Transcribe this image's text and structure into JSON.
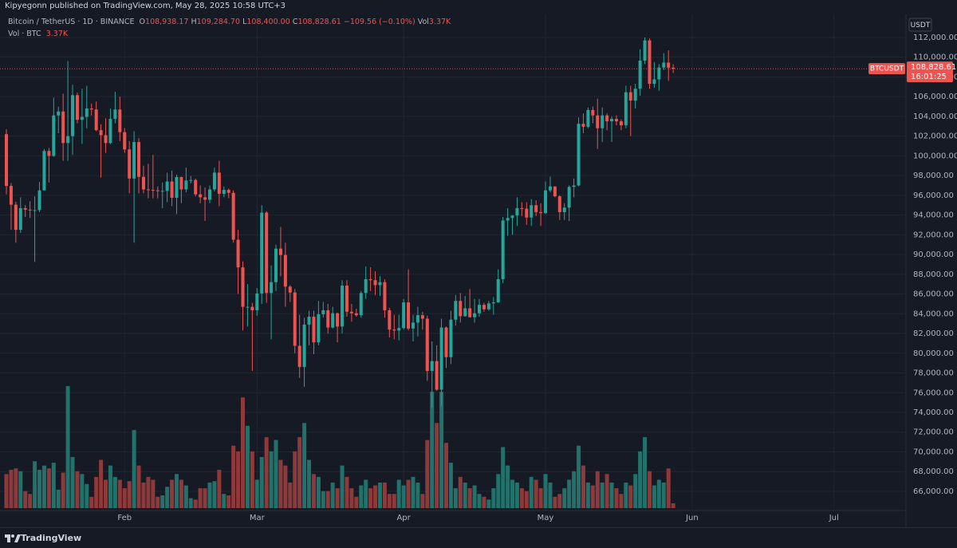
{
  "header": "Kipyegonn published on TradingView.com, May 28, 2025 10:58 UTC+3",
  "footer": "TradingView",
  "legend": {
    "symbol": "Bitcoin / TetherUS · 1D · BINANCE",
    "items": [
      {
        "key": "O",
        "value": "108,938.17"
      },
      {
        "key": "H",
        "value": "109,284.70"
      },
      {
        "key": "L",
        "value": "108,400.00"
      },
      {
        "key": "C",
        "value": "108,828.61"
      }
    ],
    "change": "−109.56 (−0.10%)",
    "volume_key": "Vol",
    "volume_value": "3.37K"
  },
  "volume_legend": {
    "name": "Vol · BTC",
    "value": "3.37K"
  },
  "chart_data": {
    "type": "candlestick",
    "currency": "USDT",
    "symbol_label": "BTCUSDT",
    "last_price_label": "108,828.61",
    "countdown": "16:01:25",
    "up_color": "#26a69a",
    "down_color": "#ef5350",
    "volume_up_color": "#22716b",
    "volume_down_color": "#8e3a3b",
    "grid": true,
    "xlim": [
      -1.35,
      190.05
    ],
    "xticks": [
      {
        "value": 25,
        "label": "Feb"
      },
      {
        "value": 53,
        "label": "Mar"
      },
      {
        "value": 84,
        "label": "Apr"
      },
      {
        "value": 114,
        "label": "May"
      },
      {
        "value": 145,
        "label": "Jun"
      },
      {
        "value": 175,
        "label": "Jul"
      }
    ],
    "ylim": [
      62440,
      114340
    ],
    "yticks": [
      {
        "value": 66000,
        "label": "66,000.00"
      },
      {
        "value": 68000,
        "label": "68,000.00"
      },
      {
        "value": 70000,
        "label": "70,000.00"
      },
      {
        "value": 72000,
        "label": "72,000.00"
      },
      {
        "value": 74000,
        "label": "74,000.00"
      },
      {
        "value": 76000,
        "label": "76,000.00"
      },
      {
        "value": 78000,
        "label": "78,000.00"
      },
      {
        "value": 80000,
        "label": "80,000.00"
      },
      {
        "value": 82000,
        "label": "82,000.00"
      },
      {
        "value": 84000,
        "label": "84,000.00"
      },
      {
        "value": 86000,
        "label": "86,000.00"
      },
      {
        "value": 88000,
        "label": "88,000.00"
      },
      {
        "value": 90000,
        "label": "90,000.00"
      },
      {
        "value": 92000,
        "label": "92,000.00"
      },
      {
        "value": 94000,
        "label": "94,000.00"
      },
      {
        "value": 96000,
        "label": "96,000.00"
      },
      {
        "value": 98000,
        "label": "98,000.00"
      },
      {
        "value": 100000,
        "label": "100,000.00"
      },
      {
        "value": 102000,
        "label": "102,000.00"
      },
      {
        "value": 104000,
        "label": "104,000.00"
      },
      {
        "value": 106000,
        "label": "106,000.00"
      },
      {
        "value": 108000,
        "label": "108,000.00"
      },
      {
        "value": 110000,
        "label": "110,000.00"
      },
      {
        "value": 112000,
        "label": "112,000.00"
      }
    ],
    "volume_lim": [
      0,
      348
    ],
    "open": [
      102200,
      96950,
      95050,
      92500,
      94700,
      94550,
      94500,
      94500,
      96500,
      100500,
      99990,
      104100,
      104500,
      101300,
      102000,
      106150,
      103650,
      103950,
      104800,
      104700,
      102600,
      102100,
      101300,
      103750,
      104700,
      102400,
      100650,
      97700,
      101400,
      97870,
      96600,
      96550,
      96500,
      96450,
      96450,
      97400,
      95750,
      97850,
      96600,
      97500,
      97550,
      96100,
      95800,
      95550,
      96600,
      98300,
      96150,
      96550,
      96250,
      91500,
      88700,
      84700,
      84700,
      84350,
      86050,
      94250,
      86100,
      87200,
      90600,
      89950,
      86750,
      86150,
      80750,
      78600,
      82900,
      83700,
      81100,
      83950,
      84350,
      82600,
      84050,
      82700,
      86850,
      84200,
      84050,
      83850,
      86100,
      87500,
      87400,
      86900,
      87200,
      84350,
      82400,
      82300,
      82550,
      85150,
      82500,
      83100,
      83850,
      83500,
      78200,
      79200,
      76300,
      82600,
      79600,
      83400,
      85300,
      83750,
      84550,
      83650,
      84050,
      84900,
      84450,
      85050,
      85150,
      87500,
      93450,
      93700,
      93950,
      94700,
      94650,
      93750,
      95000,
      94300,
      94200,
      96500,
      96900,
      95900,
      94300,
      94750,
      96850,
      97000,
      103250,
      102950,
      104650,
      104100,
      102800,
      104100,
      103500,
      103750,
      103500,
      103100,
      106450,
      105600,
      106800,
      109650,
      111700,
      107300,
      107750,
      108950,
      109450,
      108938.17
    ],
    "high": [
      102700,
      97250,
      95350,
      95800,
      95000,
      95400,
      95900,
      97350,
      100700,
      100800,
      105900,
      105000,
      106300,
      109600,
      107200,
      106400,
      106800,
      107100,
      105300,
      105500,
      103200,
      103800,
      104800,
      106500,
      106000,
      102800,
      101500,
      102500,
      101800,
      99000,
      99200,
      100100,
      96900,
      97300,
      98300,
      98500,
      98100,
      97900,
      98800,
      97950,
      97700,
      97000,
      96800,
      97000,
      98800,
      99500,
      96900,
      96700,
      96500,
      92500,
      89300,
      87000,
      85100,
      86600,
      95000,
      94400,
      88900,
      91000,
      92800,
      91200,
      86900,
      86500,
      83900,
      83600,
      84300,
      84300,
      85300,
      85200,
      85000,
      84700,
      84100,
      87400,
      87400,
      85000,
      84500,
      86300,
      88800,
      88700,
      88300,
      87800,
      87500,
      84600,
      83900,
      83900,
      85500,
      88500,
      83900,
      84700,
      84200,
      83800,
      81200,
      80800,
      83500,
      82700,
      84300,
      85900,
      86100,
      85800,
      86500,
      85500,
      85500,
      85100,
      85300,
      85700,
      88500,
      93800,
      94700,
      94000,
      95800,
      95300,
      95300,
      95600,
      95500,
      95200,
      97400,
      97900,
      96900,
      96000,
      95200,
      97000,
      97700,
      103900,
      104300,
      104900,
      105000,
      105800,
      104900,
      104300,
      104000,
      104100,
      103700,
      107100,
      107100,
      107300,
      110800,
      112000,
      111900,
      109500,
      109300,
      110400,
      110700,
      109284.7
    ],
    "low": [
      96100,
      92500,
      91200,
      92200,
      93800,
      93700,
      89250,
      94300,
      96500,
      97300,
      99900,
      102300,
      99500,
      99500,
      100100,
      103300,
      101200,
      102800,
      104100,
      102500,
      97800,
      100300,
      101200,
      103300,
      101500,
      100300,
      96200,
      91200,
      96200,
      96200,
      95700,
      95700,
      95700,
      94700,
      95300,
      94900,
      94100,
      95200,
      96300,
      97200,
      95900,
      95200,
      93400,
      95200,
      96400,
      94900,
      95800,
      95700,
      91200,
      86000,
      82300,
      82700,
      78200,
      83800,
      85000,
      85100,
      81400,
      86300,
      87800,
      84700,
      85200,
      80000,
      77500,
      76600,
      80800,
      79900,
      80800,
      83600,
      82000,
      82500,
      81100,
      82000,
      83700,
      83200,
      83700,
      83600,
      85500,
      86300,
      85900,
      85800,
      83600,
      81600,
      81400,
      81300,
      82400,
      82300,
      81200,
      81700,
      82400,
      77200,
      74500,
      76200,
      74600,
      78500,
      78900,
      82800,
      83100,
      83700,
      83600,
      83100,
      83700,
      84200,
      84300,
      83900,
      85100,
      87100,
      91900,
      92000,
      92900,
      93900,
      93000,
      92900,
      93900,
      92900,
      94100,
      96300,
      95800,
      93500,
      93500,
      93400,
      95800,
      96900,
      102300,
      102800,
      103300,
      100700,
      101400,
      102600,
      101400,
      103100,
      102600,
      102800,
      102000,
      104800,
      106100,
      109300,
      106800,
      106900,
      106600,
      108700,
      107600,
      108400
    ],
    "close": [
      96950,
      95050,
      92500,
      94700,
      94550,
      94500,
      94500,
      96500,
      100500,
      99990,
      104100,
      104500,
      101300,
      102000,
      106150,
      103650,
      103950,
      104800,
      104700,
      102600,
      102100,
      101300,
      103750,
      104700,
      102400,
      100650,
      97700,
      101400,
      97870,
      96600,
      96550,
      96500,
      96450,
      96450,
      97400,
      95750,
      97850,
      96600,
      97500,
      97550,
      96100,
      95800,
      95550,
      96600,
      98300,
      96150,
      96550,
      96250,
      91500,
      88700,
      84700,
      84700,
      84350,
      86050,
      94250,
      86100,
      87200,
      90600,
      89950,
      86750,
      86150,
      80750,
      78600,
      82900,
      83700,
      81100,
      83950,
      84350,
      82600,
      84050,
      82700,
      86850,
      84200,
      84050,
      83850,
      86100,
      87500,
      87400,
      86900,
      87200,
      84350,
      82400,
      82300,
      82550,
      85150,
      82500,
      83100,
      83850,
      83500,
      78200,
      79200,
      76300,
      82600,
      79600,
      83400,
      85300,
      83750,
      84550,
      83650,
      84050,
      84900,
      84450,
      85050,
      85150,
      87500,
      93450,
      93700,
      93950,
      94700,
      94650,
      93750,
      95000,
      94300,
      94200,
      96500,
      96900,
      95900,
      94300,
      94750,
      96850,
      97000,
      103250,
      102950,
      104650,
      104100,
      102800,
      104100,
      103500,
      103750,
      103500,
      103100,
      106450,
      105600,
      106800,
      109650,
      111700,
      107300,
      107750,
      108950,
      109450,
      108938.17,
      108828.61
    ],
    "volume": [
      24,
      27,
      28,
      26,
      12,
      10,
      33,
      27,
      30,
      28,
      32,
      13,
      25,
      86,
      36,
      26,
      24,
      17,
      8,
      22,
      34,
      20,
      30,
      22,
      20,
      14,
      19,
      55,
      30,
      18,
      22,
      20,
      8,
      9,
      15,
      20,
      24,
      20,
      16,
      7,
      6,
      14,
      14,
      18,
      19,
      27,
      10,
      9,
      44,
      40,
      78,
      58,
      40,
      20,
      36,
      50,
      40,
      48,
      34,
      30,
      18,
      40,
      50,
      60,
      34,
      24,
      22,
      12,
      12,
      18,
      14,
      30,
      22,
      14,
      8,
      16,
      20,
      14,
      16,
      18,
      18,
      10,
      10,
      20,
      16,
      20,
      22,
      18,
      10,
      48,
      82,
      60,
      82,
      46,
      32,
      14,
      22,
      18,
      14,
      16,
      10,
      8,
      6,
      14,
      24,
      43,
      30,
      20,
      18,
      14,
      12,
      22,
      20,
      14,
      24,
      18,
      8,
      10,
      14,
      20,
      26,
      44,
      30,
      18,
      16,
      26,
      18,
      24,
      18,
      14,
      10,
      18,
      16,
      24,
      40,
      50,
      26,
      16,
      20,
      18,
      28,
      3.37
    ]
  }
}
